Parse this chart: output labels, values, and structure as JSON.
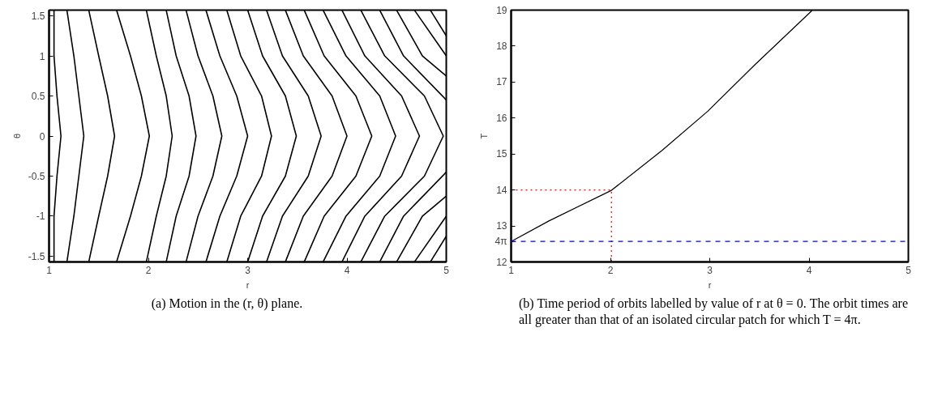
{
  "chart_data": [
    {
      "type": "line",
      "xlabel": "r",
      "ylabel": "θ",
      "xlim": [
        1,
        5
      ],
      "ylim": [
        -1.571,
        1.571
      ],
      "xticks": [
        1,
        2,
        3,
        4,
        5
      ],
      "yticks": [
        -1.5,
        -1,
        -0.5,
        0,
        0.5,
        1,
        1.5
      ],
      "grid": false,
      "line_style": "solid",
      "marker": "none",
      "annotations": [
        "(a) Motion in the (r, θ) plane."
      ],
      "series": [
        {
          "color": "#000000",
          "x": [
            1.05,
            1.05,
            1.08,
            1.12,
            1.08,
            1.05,
            1.05
          ],
          "values": [
            -1.57,
            -1,
            -0.5,
            0,
            0.5,
            1,
            1.57
          ]
        },
        {
          "color": "#000000",
          "x": [
            1.18,
            1.25,
            1.3,
            1.35,
            1.3,
            1.25,
            1.18
          ],
          "values": [
            -1.57,
            -1,
            -0.5,
            0,
            0.5,
            1,
            1.57
          ]
        },
        {
          "color": "#000000",
          "x": [
            1.4,
            1.5,
            1.59,
            1.66,
            1.59,
            1.5,
            1.4
          ],
          "values": [
            -1.57,
            -1,
            -0.5,
            0,
            0.5,
            1,
            1.57
          ]
        },
        {
          "color": "#000000",
          "x": [
            1.68,
            1.82,
            1.93,
            2.01,
            1.93,
            1.82,
            1.68
          ],
          "values": [
            -1.57,
            -1,
            -0.5,
            0,
            0.5,
            1,
            1.57
          ]
        },
        {
          "color": "#000000",
          "x": [
            1.98,
            2.08,
            2.18,
            2.24,
            2.18,
            2.08,
            1.98
          ],
          "values": [
            -1.57,
            -1,
            -0.5,
            0,
            0.5,
            1,
            1.57
          ]
        },
        {
          "color": "#000000",
          "x": [
            2.18,
            2.28,
            2.41,
            2.48,
            2.41,
            2.28,
            2.18
          ],
          "values": [
            -1.57,
            -1,
            -0.5,
            0,
            0.5,
            1,
            1.57
          ]
        },
        {
          "color": "#000000",
          "x": [
            2.38,
            2.5,
            2.65,
            2.74,
            2.65,
            2.5,
            2.38
          ],
          "values": [
            -1.57,
            -1,
            -0.5,
            0,
            0.5,
            1,
            1.57
          ]
        },
        {
          "color": "#000000",
          "x": [
            2.58,
            2.72,
            2.89,
            3.0,
            2.89,
            2.72,
            2.58
          ],
          "values": [
            -1.57,
            -1,
            -0.5,
            0,
            0.5,
            1,
            1.57
          ]
        },
        {
          "color": "#000000",
          "x": [
            2.79,
            2.93,
            3.14,
            3.24,
            3.14,
            2.93,
            2.79
          ],
          "values": [
            -1.57,
            -1,
            -0.5,
            0,
            0.5,
            1,
            1.57
          ]
        },
        {
          "color": "#000000",
          "x": [
            3.0,
            3.15,
            3.38,
            3.49,
            3.38,
            3.15,
            3.0
          ],
          "values": [
            -1.57,
            -1,
            -0.5,
            0,
            0.5,
            1,
            1.57
          ]
        },
        {
          "color": "#000000",
          "x": [
            3.19,
            3.35,
            3.61,
            3.74,
            3.61,
            3.35,
            3.19
          ],
          "values": [
            -1.57,
            -1,
            -0.5,
            0,
            0.5,
            1,
            1.57
          ]
        },
        {
          "color": "#000000",
          "x": [
            3.38,
            3.56,
            3.85,
            4.0,
            3.85,
            3.56,
            3.38
          ],
          "values": [
            -1.57,
            -1,
            -0.5,
            0,
            0.5,
            1,
            1.57
          ]
        },
        {
          "color": "#000000",
          "x": [
            3.57,
            3.77,
            4.09,
            4.25,
            4.09,
            3.77,
            3.57
          ],
          "values": [
            -1.57,
            -1,
            -0.5,
            0,
            0.5,
            1,
            1.57
          ]
        },
        {
          "color": "#000000",
          "x": [
            3.76,
            3.99,
            4.33,
            4.49,
            4.33,
            3.99,
            3.76
          ],
          "values": [
            -1.57,
            -1,
            -0.5,
            0,
            0.5,
            1,
            1.57
          ]
        },
        {
          "color": "#000000",
          "x": [
            3.95,
            4.18,
            4.55,
            4.73,
            4.55,
            4.18,
            3.95
          ],
          "values": [
            -1.57,
            -1,
            -0.5,
            0,
            0.5,
            1,
            1.57
          ]
        },
        {
          "color": "#000000",
          "x": [
            4.14,
            4.38,
            4.78,
            4.97,
            4.78,
            4.38,
            4.14
          ],
          "values": [
            -1.57,
            -1,
            -0.5,
            0,
            0.5,
            1,
            1.57
          ]
        },
        {
          "color": "#000000",
          "x": [
            4.33,
            4.57,
            5.0
          ],
          "values": [
            -1.57,
            -1,
            -0.45
          ]
        },
        {
          "color": "#000000",
          "x": [
            5.0,
            4.57,
            4.33
          ],
          "values": [
            0.45,
            1,
            1.57
          ]
        },
        {
          "color": "#000000",
          "x": [
            4.5,
            4.76,
            5.0
          ],
          "values": [
            -1.57,
            -1,
            -0.75
          ]
        },
        {
          "color": "#000000",
          "x": [
            5.0,
            4.76,
            4.5
          ],
          "values": [
            0.75,
            1,
            1.57
          ]
        },
        {
          "color": "#000000",
          "x": [
            4.68,
            5.0
          ],
          "values": [
            -1.57,
            -1
          ]
        },
        {
          "color": "#000000",
          "x": [
            5.0,
            4.68
          ],
          "values": [
            1,
            1.57
          ]
        },
        {
          "color": "#000000",
          "x": [
            4.84,
            5.0
          ],
          "values": [
            -1.57,
            -1.25
          ]
        },
        {
          "color": "#000000",
          "x": [
            5.0,
            4.84
          ],
          "values": [
            1.25,
            1.57
          ]
        }
      ]
    },
    {
      "type": "line",
      "xlabel": "r",
      "ylabel": "T",
      "xlim": [
        1,
        5
      ],
      "ylim": [
        12,
        19
      ],
      "xticks": [
        1,
        2,
        3,
        4,
        5
      ],
      "yticks": [
        12,
        {
          "value": 12.57,
          "label": "4π"
        },
        13,
        14,
        15,
        16,
        17,
        18,
        19
      ],
      "grid": false,
      "marker": "none",
      "annotations": [
        "(b) Time period of orbits labelled by value of r at θ = 0. The orbit times are all greater than that of an isolated circular patch for which T = 4π."
      ],
      "ref_lines": [
        {
          "axis": "y",
          "value": 12.57,
          "color": "#0000ff",
          "line_style": "dashed"
        }
      ],
      "series": [
        {
          "color": "#000000",
          "line_style": "solid",
          "x": [
            1.0,
            1.38,
            2.01,
            2.52,
            2.98,
            3.45,
            4.03
          ],
          "values": [
            12.57,
            13.14,
            13.99,
            15.1,
            16.19,
            17.47,
            18.99
          ]
        },
        {
          "color": "#ff0000",
          "line_style": "dotted",
          "x": [
            1.0,
            2.01,
            2.01
          ],
          "values": [
            14,
            14,
            12
          ]
        }
      ]
    }
  ]
}
